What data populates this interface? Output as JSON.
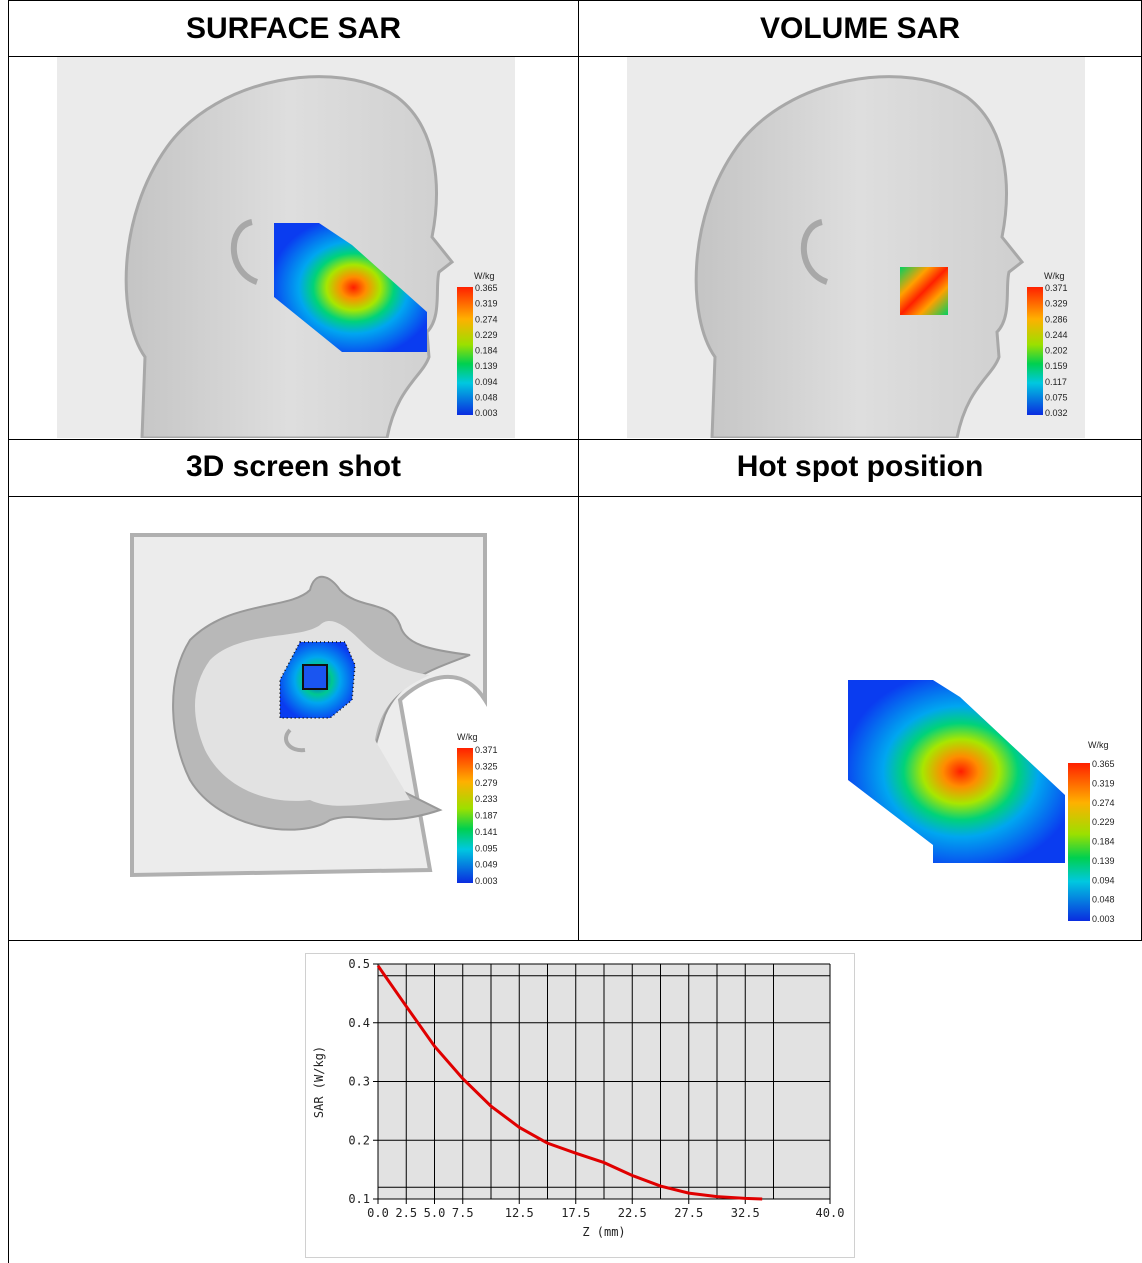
{
  "headings": {
    "surface": "SURFACE SAR",
    "volume": "VOLUME SAR",
    "screenshot3d": "3D screen shot",
    "hotspot": "Hot spot position"
  },
  "colors": {
    "head_gray": "#d2d2d2",
    "background_gray": "#ebebeb",
    "sar_red": "#ff2000",
    "sar_blue": "#0a3cf0",
    "curve_red": "#e00000"
  },
  "legends": {
    "surface": {
      "unit": "W/kg",
      "values": [
        "0.365",
        "0.319",
        "0.274",
        "0.229",
        "0.184",
        "0.139",
        "0.094",
        "0.048",
        "0.003"
      ]
    },
    "volume": {
      "unit": "W/kg",
      "values": [
        "0.371",
        "0.329",
        "0.286",
        "0.244",
        "0.202",
        "0.159",
        "0.117",
        "0.075",
        "0.032"
      ]
    },
    "screenshot3d": {
      "unit": "W/kg",
      "values": [
        "0.371",
        "0.325",
        "0.279",
        "0.233",
        "0.187",
        "0.141",
        "0.095",
        "0.049",
        "0.003"
      ]
    },
    "hotspot": {
      "unit": "W/kg",
      "values": [
        "0.365",
        "0.319",
        "0.274",
        "0.229",
        "0.184",
        "0.139",
        "0.094",
        "0.048",
        "0.003"
      ]
    }
  },
  "chart_data": {
    "type": "line",
    "xlabel": "Z (mm)",
    "ylabel": "SAR (W/kg)",
    "xlim": [
      0,
      40
    ],
    "ylim": [
      0.1,
      0.5
    ],
    "xticks": [
      "0.0",
      "2.5",
      "5.0",
      "7.5",
      "12.5",
      "17.5",
      "22.5",
      "27.5",
      "32.5",
      "40.0"
    ],
    "xtick_values": [
      0,
      2.5,
      5,
      7.5,
      12.5,
      17.5,
      22.5,
      27.5,
      32.5,
      40
    ],
    "yticks": [
      "0.5",
      "0.4",
      "0.3",
      "0.2",
      "0.1"
    ],
    "ytick_values": [
      0.5,
      0.4,
      0.3,
      0.2,
      0.1
    ],
    "grid": true,
    "series": [
      {
        "x": [
          0,
          2.5,
          5,
          7.5,
          10,
          12.5,
          15,
          17.5,
          20,
          22.5,
          25,
          27.5,
          30,
          32.5,
          34
        ],
        "y": [
          0.497,
          0.428,
          0.36,
          0.305,
          0.258,
          0.222,
          0.195,
          0.178,
          0.162,
          0.14,
          0.122,
          0.11,
          0.104,
          0.101,
          0.1
        ],
        "color": "#e00000"
      }
    ]
  }
}
